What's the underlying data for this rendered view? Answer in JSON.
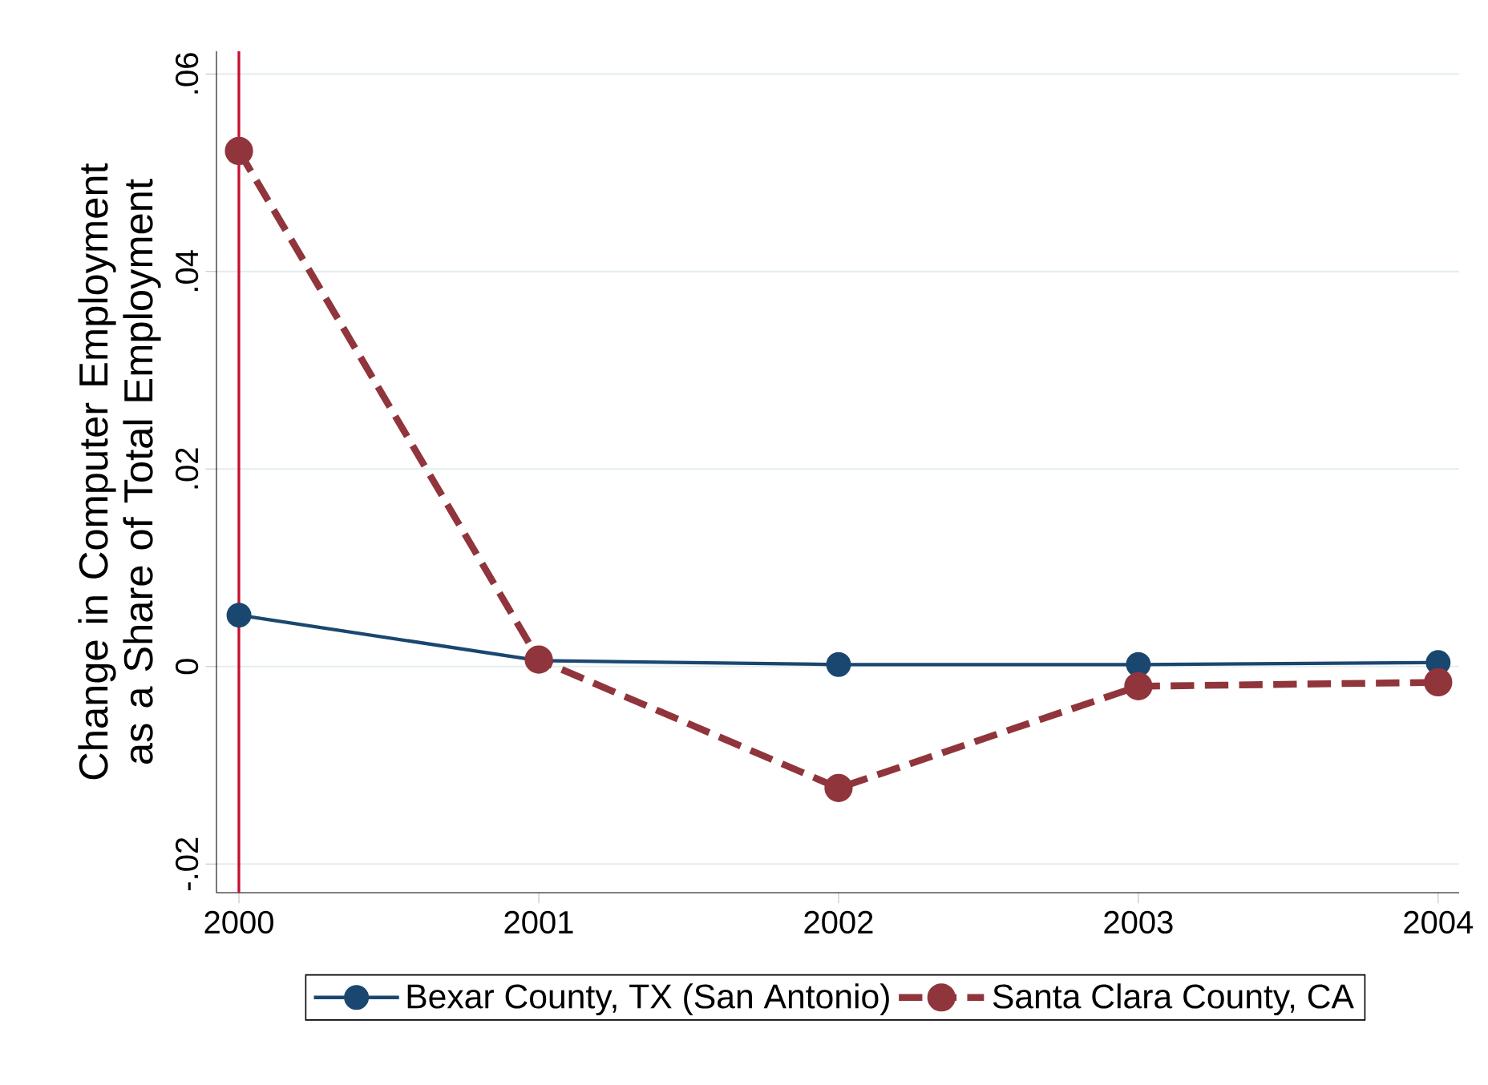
{
  "chart_data": {
    "type": "line",
    "ylabel": "Change in Computer Employment as a Share of Total Employment",
    "x": [
      2000,
      2001,
      2002,
      2003,
      2004
    ],
    "series": [
      {
        "name": "Bexar County, TX (San Antonio)",
        "color": "#1a476f",
        "line_style": "solid",
        "values": [
          0.0052,
          0.0006,
          0.0002,
          0.0002,
          0.0004
        ]
      },
      {
        "name": "Santa Clara County, CA",
        "color": "#90353b",
        "line_style": "dashed",
        "values": [
          0.0522,
          0.0007,
          -0.0123,
          -0.002,
          -0.0016
        ]
      }
    ],
    "xlim": [
      1999.925,
      2004.07
    ],
    "ylim": [
      -0.0229,
      0.0623
    ],
    "xticks": [
      2000,
      2001,
      2002,
      2003,
      2004
    ],
    "yticks": [
      {
        "value": -0.02,
        "label": "-.02"
      },
      {
        "value": 0,
        "label": "0"
      },
      {
        "value": 0.02,
        "label": ".02"
      },
      {
        "value": 0.04,
        "label": ".04"
      },
      {
        "value": 0.06,
        "label": ".06"
      }
    ],
    "ref_lines": [
      {
        "axis": "x",
        "value": 2000,
        "color": "#c8102e"
      }
    ],
    "grid": "y",
    "marker": "circle",
    "legend": "bottom"
  }
}
